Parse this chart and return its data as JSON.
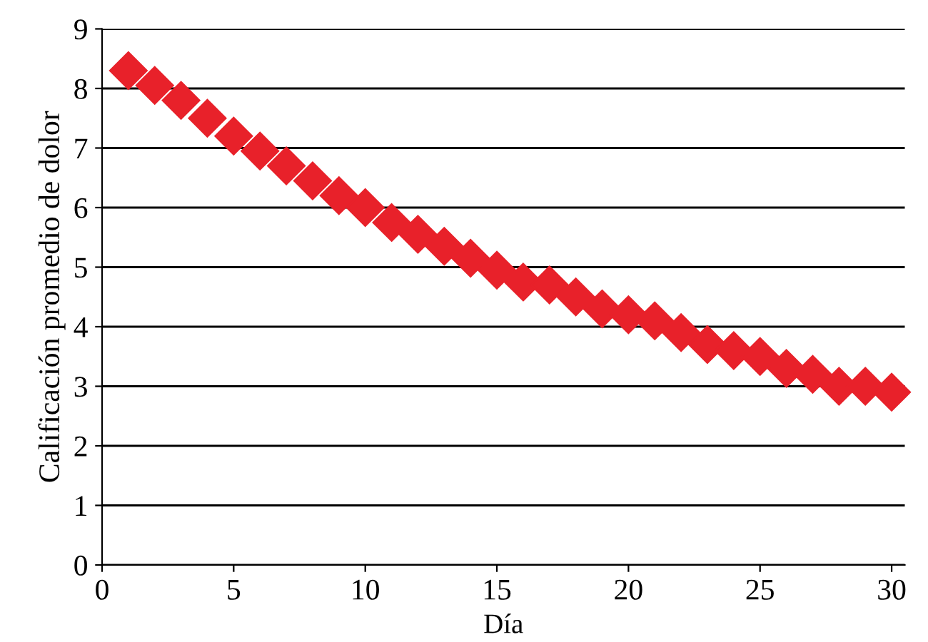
{
  "chart_data": {
    "type": "scatter",
    "xlabel": "Día",
    "ylabel": "Calificación promedio de dolor",
    "x": [
      1,
      2,
      3,
      4,
      5,
      6,
      7,
      8,
      9,
      10,
      11,
      12,
      13,
      14,
      15,
      16,
      17,
      18,
      19,
      20,
      21,
      22,
      23,
      24,
      25,
      26,
      27,
      28,
      29,
      30
    ],
    "series": [
      {
        "color": "#e8212a",
        "values": [
          8.3,
          8.05,
          7.8,
          7.5,
          7.2,
          6.95,
          6.7,
          6.45,
          6.2,
          6.0,
          5.75,
          5.55,
          5.35,
          5.15,
          4.95,
          4.75,
          4.7,
          4.5,
          4.3,
          4.2,
          4.1,
          3.9,
          3.7,
          3.6,
          3.5,
          3.3,
          3.2,
          3.0,
          3.0,
          2.9
        ]
      }
    ],
    "xlim": [
      0,
      30.5
    ],
    "xticks": [
      0,
      5,
      10,
      15,
      20,
      25,
      30
    ],
    "ylim": [
      0,
      9
    ],
    "yticks": [
      0,
      1,
      2,
      3,
      4,
      5,
      6,
      7,
      8,
      9
    ],
    "grid": "y",
    "marker": "diamond"
  }
}
